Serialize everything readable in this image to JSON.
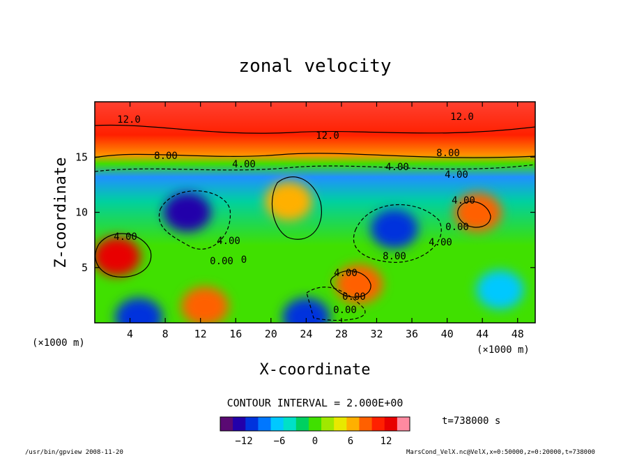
{
  "chart_data": {
    "type": "heatmap",
    "title": "zonal velocity",
    "xlabel": "X-coordinate",
    "ylabel": "Z-coordinate",
    "x_unit": "(×1000 m)",
    "y_unit": "(×1000 m)",
    "xlim": [
      0,
      50
    ],
    "ylim": [
      0,
      20
    ],
    "xticks": [
      "4",
      "8",
      "12",
      "16",
      "20",
      "24",
      "28",
      "32",
      "36",
      "40",
      "44",
      "48"
    ],
    "yticks": [
      "5",
      "10",
      "15"
    ],
    "contour_interval_text": "CONTOUR INTERVAL = 2.000E+00",
    "time_text": "t=738000 s",
    "colorbar": {
      "range": [
        -16,
        16
      ],
      "ticks": [
        "−12",
        "−6",
        "0",
        "6",
        "12"
      ],
      "colors": [
        "#5a0a73",
        "#2200aa",
        "#0033dd",
        "#0077ff",
        "#00c8ff",
        "#00e0c8",
        "#00d060",
        "#40e000",
        "#a0e800",
        "#e8e800",
        "#ffb000",
        "#ff6000",
        "#ff2000",
        "#e80000",
        "#ff8aa0"
      ]
    },
    "contour_labels": [
      "12.0",
      "12.0",
      "12.0",
      "8.00",
      "4.00",
      "4.00",
      "8.00",
      "4.00",
      "4.00",
      "0.00",
      "4.00",
      "0.00",
      "0",
      "4.00",
      "8.00",
      "0.00",
      "4.00",
      "0.00",
      "4.00"
    ],
    "features": [
      {
        "x": 10.5,
        "z": 10,
        "u": -14
      },
      {
        "x": 34,
        "z": 8.5,
        "u": -12
      },
      {
        "x": 22,
        "z": 11,
        "u": 6
      },
      {
        "x": 2.5,
        "z": 6,
        "u": 13
      },
      {
        "x": 30,
        "z": 3.5,
        "u": 8
      },
      {
        "x": 43.5,
        "z": 10,
        "u": 8
      },
      {
        "x": 12.5,
        "z": 1.5,
        "u": 8
      },
      {
        "x": 46,
        "z": 3,
        "u": -6
      },
      {
        "x": 24,
        "z": 0.5,
        "u": -12
      },
      {
        "x": 5,
        "z": 0.5,
        "u": -12
      }
    ],
    "grid": false
  },
  "footer": {
    "left": "/usr/bin/gpview  2008-11-20",
    "right": "MarsCond_VelX.nc@VelX,x=0:50000,z=0:20000,t=738000"
  }
}
